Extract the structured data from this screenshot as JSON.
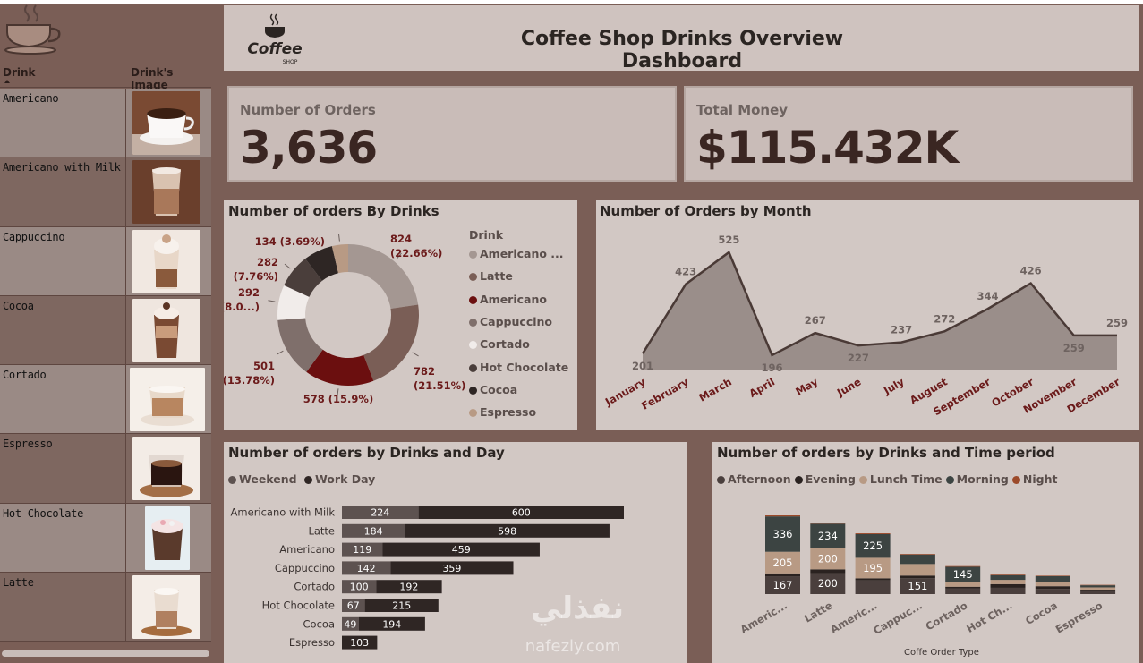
{
  "dashboard": {
    "title": "Coffee Shop Drinks Overview Dashboard",
    "logo_text": "Coffee",
    "logo_sub": "SHOP"
  },
  "sidebar": {
    "col_drink": "Drink",
    "col_image": "Drink's Image",
    "drinks": [
      "Americano",
      "Americano with Milk",
      "Cappuccino",
      "Cocoa",
      "Cortado",
      "Espresso",
      "Hot Chocolate",
      "Latte"
    ]
  },
  "kpis": {
    "orders_label": "Number of Orders",
    "orders_value": "3,636",
    "money_label": "Total Money",
    "money_value": "$115.432K"
  },
  "colors": {
    "bg": "#7a5e56",
    "panel": "#d2c8c4",
    "dark": "#3a2622",
    "maroon": "#6b0f0f"
  },
  "chart_data": [
    {
      "type": "pie",
      "title": "Number of orders By Drinks",
      "legend_title": "Drink",
      "legend": [
        "Americano ...",
        "Latte",
        "Americano",
        "Cappuccino",
        "Cortado",
        "Hot Chocolate",
        "Cocoa",
        "Espresso"
      ],
      "slices": [
        {
          "name": "Americano with Milk",
          "value": 824,
          "label": "824",
          "label2": "(22.66%)",
          "color": "#a49792"
        },
        {
          "name": "Latte",
          "value": 782,
          "label": "782",
          "label2": "(21.51%)",
          "color": "#7a5e56"
        },
        {
          "name": "Americano",
          "value": 578,
          "label": "578 (15.9%)",
          "label2": "",
          "color": "#6b0f0f"
        },
        {
          "name": "Cappuccino",
          "value": 501,
          "label": "501",
          "label2": "(13.78%)",
          "color": "#7f6f6b"
        },
        {
          "name": "Cortado",
          "value": 292,
          "label": "292",
          "label2": "(8.0...)",
          "color": "#f1ecea"
        },
        {
          "name": "Hot Chocolate",
          "value": 282,
          "label": "282",
          "label2": "(7.76%)",
          "color": "#4a3e3b"
        },
        {
          "name": "Cocoa",
          "value": 243,
          "label": "",
          "label2": "",
          "color": "#2e2624"
        },
        {
          "name": "Espresso",
          "value": 134,
          "label": "134 (3.69%)",
          "label2": "",
          "color": "#b89a84"
        }
      ]
    },
    {
      "type": "area",
      "title": "Number of Orders by Month",
      "x": [
        "January",
        "February",
        "March",
        "April",
        "May",
        "June",
        "July",
        "August",
        "September",
        "October",
        "November",
        "December"
      ],
      "values": [
        201,
        423,
        525,
        196,
        267,
        227,
        237,
        272,
        344,
        426,
        259,
        259
      ],
      "color": "#8d807c",
      "line_color": "#4a3a36"
    },
    {
      "type": "bar",
      "orientation": "horizontal",
      "stacked": true,
      "title": "Number of orders by Drinks and Day",
      "categories": [
        "Americano with Milk",
        "Latte",
        "Americano",
        "Cappuccino",
        "Cortado",
        "Hot Chocolate",
        "Cocoa",
        "Espresso"
      ],
      "series": [
        {
          "name": "Weekend",
          "color": "#5d5250",
          "values": [
            224,
            184,
            119,
            142,
            100,
            67,
            49,
            null
          ]
        },
        {
          "name": "Work Day",
          "color": "#2f2624",
          "values": [
            600,
            598,
            459,
            359,
            192,
            215,
            194,
            103
          ]
        }
      ]
    },
    {
      "type": "bar",
      "stacked": true,
      "title": "Number of orders by Drinks and Time period",
      "xlabel": "Coffe Order Type",
      "categories": [
        "Americ...",
        "Latte",
        "Americ...",
        "Cappuc...",
        "Cortado",
        "Hot Ch...",
        "Cocoa",
        "Espresso"
      ],
      "series": [
        {
          "name": "Afternoon",
          "color": "#4a3f3d",
          "values": [
            167,
            200,
            130,
            151,
            55,
            60,
            50,
            30
          ]
        },
        {
          "name": "Evening",
          "color": "#2a2220",
          "values": [
            30,
            35,
            20,
            25,
            15,
            35,
            25,
            12
          ]
        },
        {
          "name": "Lunch Time",
          "color": "#b89a84",
          "values": [
            205,
            200,
            195,
            110,
            45,
            40,
            40,
            22
          ]
        },
        {
          "name": "Morning",
          "color": "#3c4442",
          "values": [
            336,
            234,
            225,
            90,
            145,
            45,
            55,
            20
          ]
        },
        {
          "name": "Night",
          "color": "#9c4a2a",
          "values": [
            10,
            8,
            8,
            6,
            6,
            6,
            5,
            4
          ]
        }
      ],
      "labels_shown": {
        "Americ...": [
          167,
          205,
          336
        ],
        "Latte": [
          200,
          200,
          234
        ],
        "Americ...2": [
          195,
          225
        ],
        "Cappuc...": [
          151
        ],
        "Cortado": [
          145
        ]
      }
    }
  ],
  "watermark": {
    "text": "نفذلي",
    "sub": "nafezly.com"
  }
}
